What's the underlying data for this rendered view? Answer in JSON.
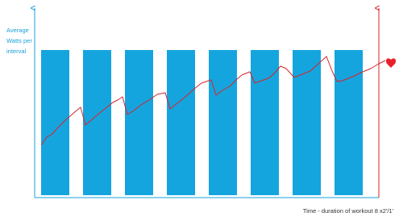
{
  "y_axis_label": [
    "Average",
    "Watts per",
    "interval"
  ],
  "x_axis_label": "Time - duration of workout 8 x2'/1'"
}
